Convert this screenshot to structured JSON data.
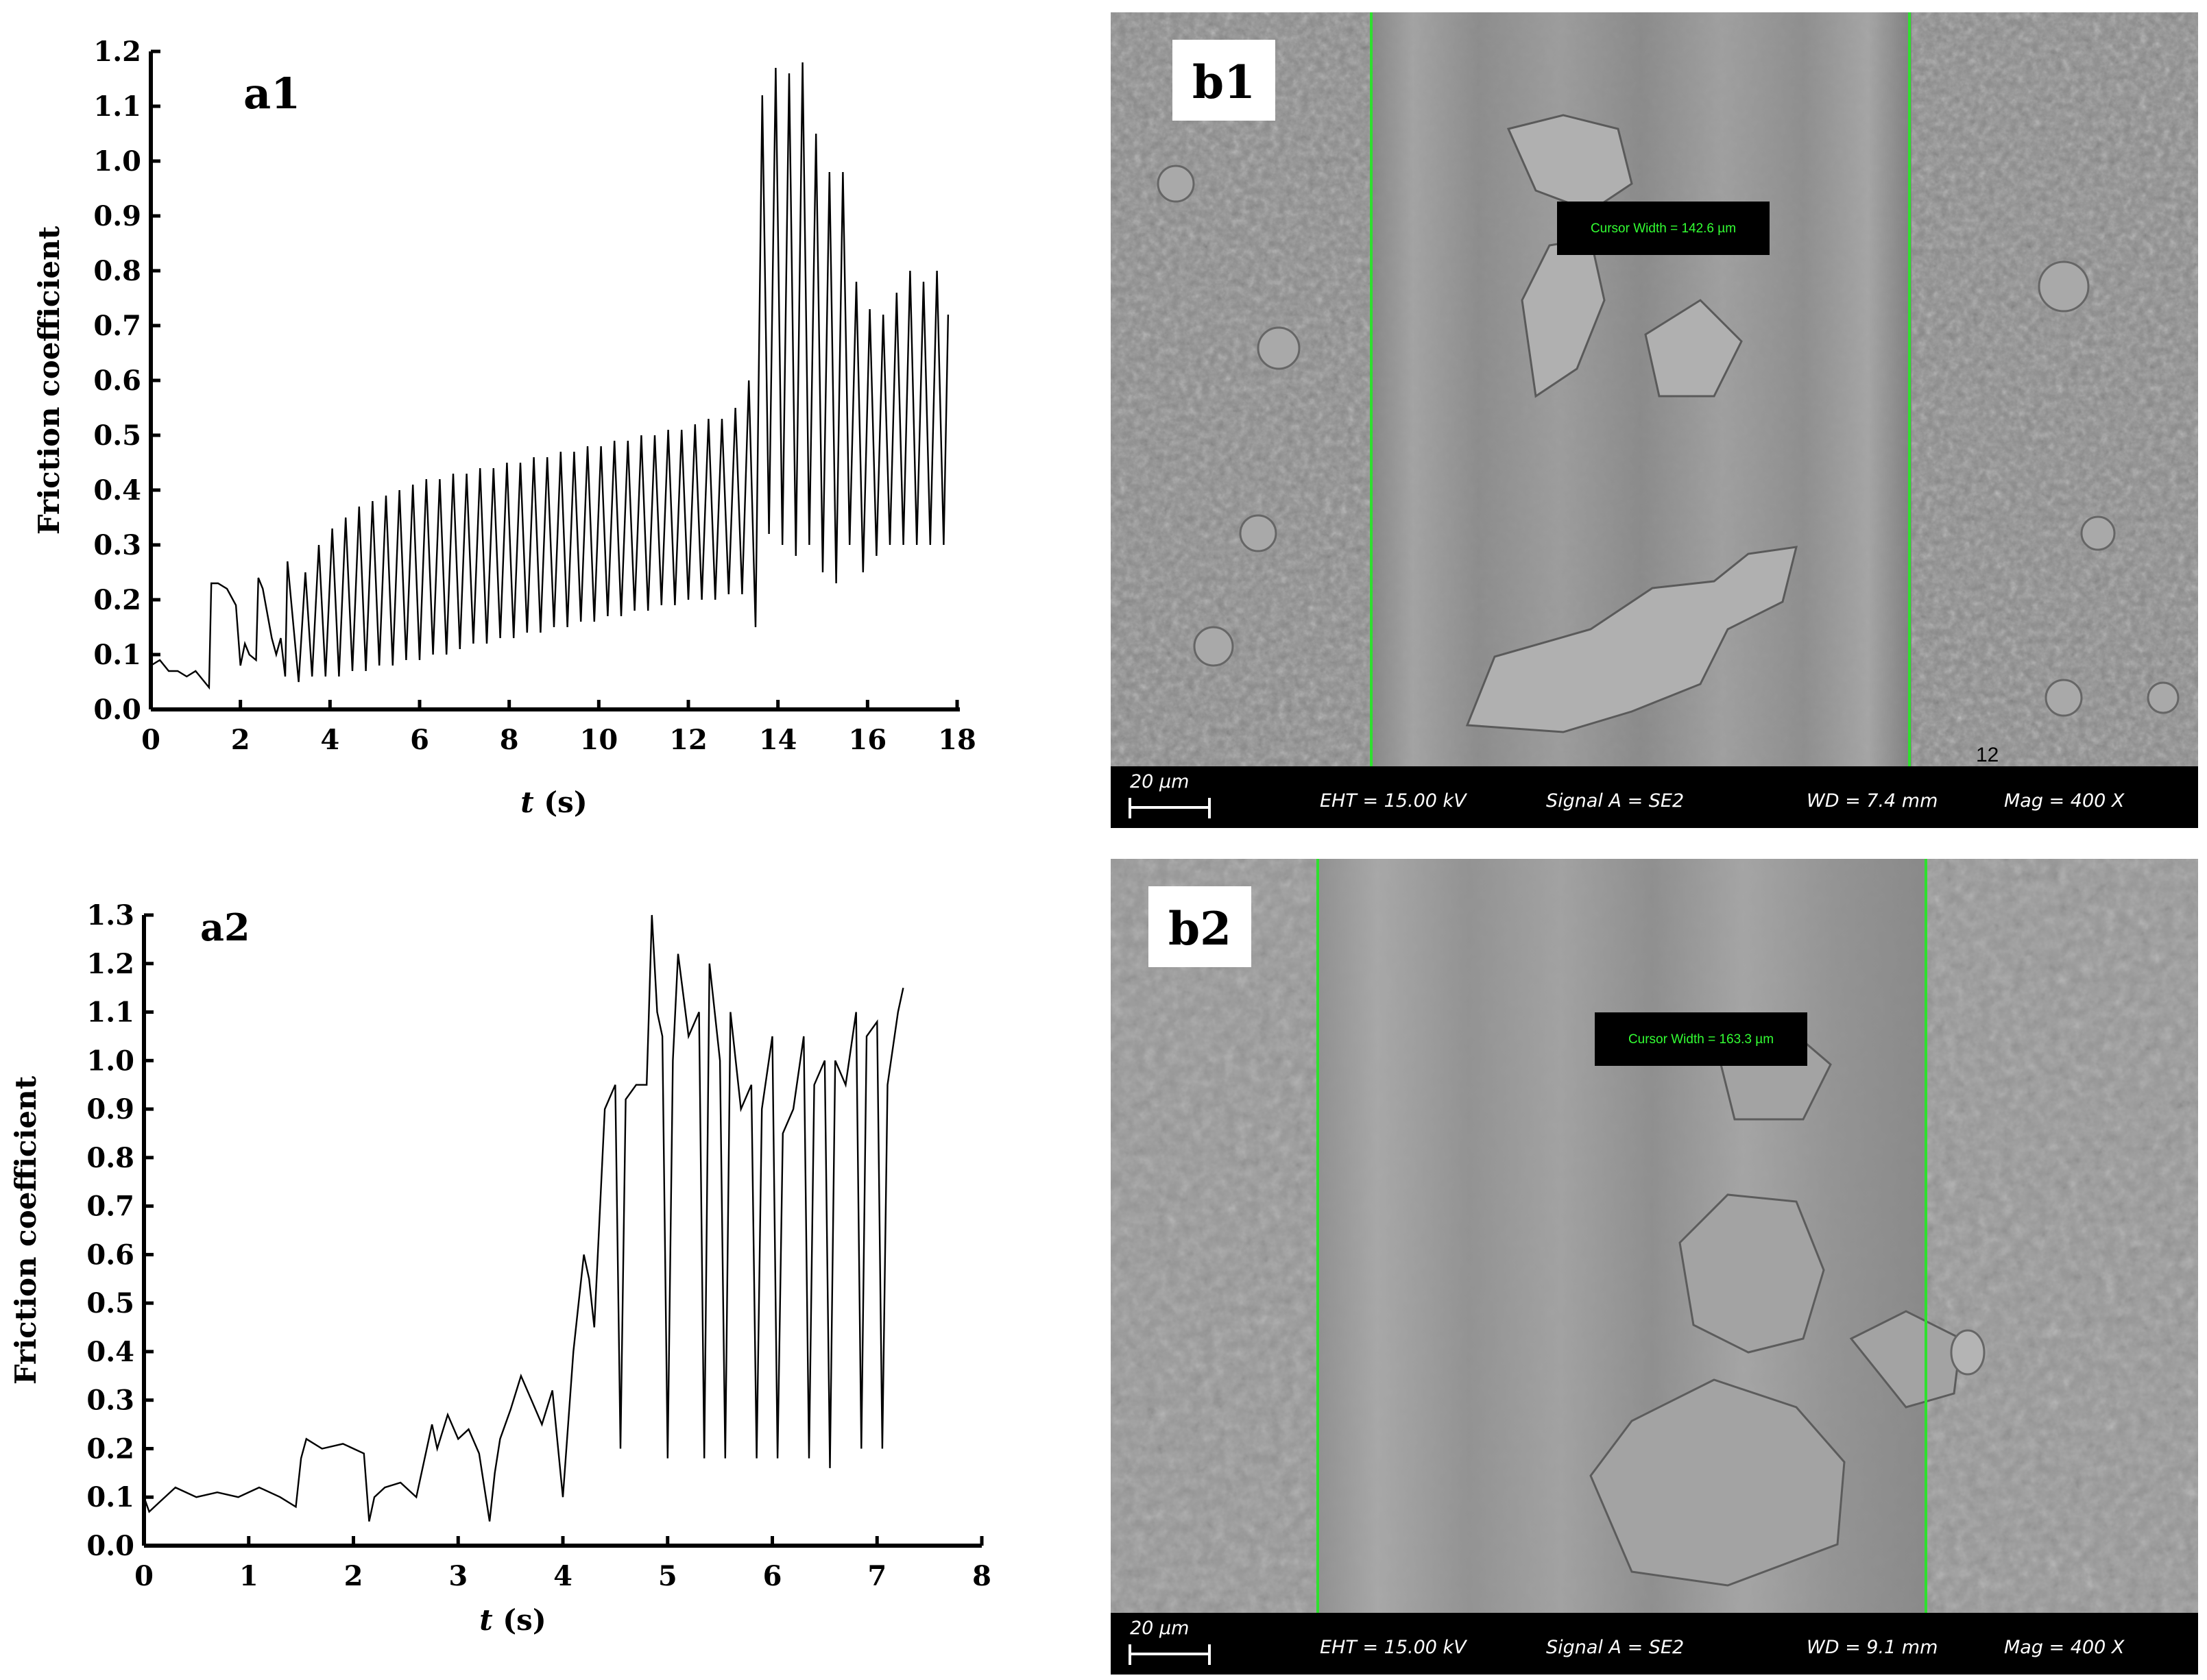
{
  "chart_data": [
    {
      "type": "line",
      "panel": "a1",
      "xlabel_italic": "t",
      "xlabel_unit": " (s)",
      "ylabel": "Friction coefficient",
      "xlim": [
        0,
        18
      ],
      "ylim": [
        0,
        1.2
      ],
      "xticks": [
        "0",
        "2",
        "4",
        "6",
        "8",
        "10",
        "12",
        "14",
        "16",
        "18"
      ],
      "yticks": [
        "0.0",
        "0.1",
        "0.2",
        "0.3",
        "0.4",
        "0.5",
        "0.6",
        "0.7",
        "0.8",
        "0.9",
        "1.0",
        "1.1",
        "1.2"
      ],
      "series": [
        {
          "color": "#000000",
          "x": [
            0.0,
            0.2,
            0.4,
            0.6,
            0.8,
            1.0,
            1.2,
            1.3,
            1.35,
            1.5,
            1.7,
            1.9,
            2.0,
            2.1,
            2.2,
            2.35,
            2.4,
            2.5,
            2.7,
            2.8,
            2.9,
            3.0,
            3.05,
            3.3,
            3.45,
            3.6,
            3.75,
            3.9,
            4.05,
            4.2,
            4.35,
            4.5,
            4.65,
            4.8,
            4.95,
            5.1,
            5.25,
            5.4,
            5.55,
            5.7,
            5.85,
            6.0,
            6.15,
            6.3,
            6.45,
            6.6,
            6.75,
            6.9,
            7.05,
            7.2,
            7.35,
            7.5,
            7.65,
            7.8,
            7.95,
            8.1,
            8.25,
            8.4,
            8.55,
            8.7,
            8.85,
            9.0,
            9.15,
            9.3,
            9.45,
            9.6,
            9.75,
            9.9,
            10.05,
            10.2,
            10.35,
            10.5,
            10.65,
            10.8,
            10.95,
            11.1,
            11.25,
            11.4,
            11.55,
            11.7,
            11.85,
            12.0,
            12.15,
            12.3,
            12.45,
            12.6,
            12.75,
            12.9,
            13.05,
            13.2,
            13.35,
            13.5,
            13.65,
            13.8,
            13.95,
            14.1,
            14.25,
            14.4,
            14.55,
            14.7,
            14.85,
            15.0,
            15.15,
            15.3,
            15.45,
            15.6,
            15.75,
            15.9,
            16.05,
            16.2,
            16.35,
            16.5,
            16.65,
            16.8,
            16.95,
            17.1,
            17.25,
            17.4,
            17.55,
            17.7,
            17.8
          ],
          "y": [
            0.08,
            0.09,
            0.07,
            0.07,
            0.06,
            0.07,
            0.05,
            0.04,
            0.23,
            0.23,
            0.22,
            0.19,
            0.08,
            0.12,
            0.1,
            0.09,
            0.24,
            0.22,
            0.13,
            0.1,
            0.13,
            0.06,
            0.27,
            0.05,
            0.25,
            0.06,
            0.3,
            0.06,
            0.33,
            0.06,
            0.35,
            0.07,
            0.37,
            0.07,
            0.38,
            0.08,
            0.39,
            0.08,
            0.4,
            0.09,
            0.41,
            0.09,
            0.42,
            0.1,
            0.42,
            0.1,
            0.43,
            0.11,
            0.43,
            0.12,
            0.44,
            0.12,
            0.44,
            0.13,
            0.45,
            0.13,
            0.45,
            0.14,
            0.46,
            0.14,
            0.46,
            0.15,
            0.47,
            0.15,
            0.47,
            0.16,
            0.48,
            0.16,
            0.48,
            0.17,
            0.49,
            0.17,
            0.49,
            0.18,
            0.5,
            0.18,
            0.5,
            0.19,
            0.51,
            0.19,
            0.51,
            0.2,
            0.52,
            0.2,
            0.53,
            0.2,
            0.53,
            0.21,
            0.55,
            0.21,
            0.6,
            0.15,
            1.12,
            0.32,
            1.17,
            0.3,
            1.16,
            0.28,
            1.18,
            0.3,
            1.05,
            0.25,
            0.98,
            0.23,
            0.98,
            0.3,
            0.78,
            0.25,
            0.73,
            0.28,
            0.72,
            0.3,
            0.76,
            0.3,
            0.8,
            0.3,
            0.78,
            0.3,
            0.8,
            0.3,
            0.72
          ]
        }
      ]
    },
    {
      "type": "line",
      "panel": "a2",
      "xlabel_italic": "t",
      "xlabel_unit": " (s)",
      "ylabel": "Friction coefficient",
      "xlim": [
        0,
        8
      ],
      "ylim": [
        0,
        1.3
      ],
      "xticks": [
        "0",
        "1",
        "2",
        "3",
        "4",
        "5",
        "6",
        "7",
        "8"
      ],
      "yticks": [
        "0.0",
        "0.1",
        "0.2",
        "0.3",
        "0.4",
        "0.5",
        "0.6",
        "0.7",
        "0.8",
        "0.9",
        "1.0",
        "1.1",
        "1.2",
        "1.3"
      ],
      "series": [
        {
          "color": "#000000",
          "x": [
            0.0,
            0.05,
            0.15,
            0.3,
            0.5,
            0.7,
            0.9,
            1.1,
            1.3,
            1.45,
            1.5,
            1.55,
            1.7,
            1.9,
            2.1,
            2.15,
            2.2,
            2.3,
            2.45,
            2.6,
            2.75,
            2.8,
            2.9,
            3.0,
            3.1,
            3.2,
            3.3,
            3.35,
            3.4,
            3.5,
            3.6,
            3.7,
            3.8,
            3.9,
            4.0,
            4.1,
            4.15,
            4.2,
            4.25,
            4.3,
            4.4,
            4.5,
            4.55,
            4.6,
            4.7,
            4.8,
            4.85,
            4.9,
            4.95,
            5.0,
            5.05,
            5.1,
            5.2,
            5.3,
            5.35,
            5.4,
            5.5,
            5.55,
            5.6,
            5.7,
            5.8,
            5.85,
            5.9,
            6.0,
            6.05,
            6.1,
            6.2,
            6.3,
            6.35,
            6.4,
            6.5,
            6.55,
            6.6,
            6.7,
            6.8,
            6.85,
            6.9,
            7.0,
            7.05,
            7.1,
            7.2,
            7.25
          ],
          "y": [
            0.1,
            0.07,
            0.09,
            0.12,
            0.1,
            0.11,
            0.1,
            0.12,
            0.1,
            0.08,
            0.18,
            0.22,
            0.2,
            0.21,
            0.19,
            0.05,
            0.1,
            0.12,
            0.13,
            0.1,
            0.25,
            0.2,
            0.27,
            0.22,
            0.24,
            0.19,
            0.05,
            0.15,
            0.22,
            0.28,
            0.35,
            0.3,
            0.25,
            0.32,
            0.1,
            0.4,
            0.5,
            0.6,
            0.55,
            0.45,
            0.9,
            0.95,
            0.2,
            0.92,
            0.95,
            0.95,
            1.3,
            1.1,
            1.05,
            0.18,
            1.0,
            1.22,
            1.05,
            1.1,
            0.18,
            1.2,
            1.0,
            0.18,
            1.1,
            0.9,
            0.95,
            0.18,
            0.9,
            1.05,
            0.18,
            0.85,
            0.9,
            1.05,
            0.18,
            0.95,
            1.0,
            0.16,
            1.0,
            0.95,
            1.1,
            0.2,
            1.05,
            1.08,
            0.2,
            0.95,
            1.1,
            1.15
          ]
        }
      ]
    }
  ],
  "panels": {
    "a1": "a1",
    "a2": "a2",
    "b1": "b1",
    "b2": "b2"
  },
  "sem": [
    {
      "id": "b1",
      "cursor_text": "Cursor Width = 142.6 µm",
      "scale_bar": "20 µm",
      "eht": "EHT = 15.00 kV",
      "signal": "Signal A = SE2",
      "wd": "WD =  7.4 mm",
      "mag": "Mag =   400 X",
      "marker": "12"
    },
    {
      "id": "b2",
      "cursor_text": "Cursor Width = 163.3 µm",
      "scale_bar": "20 µm",
      "eht": "EHT = 15.00 kV",
      "signal": "Signal A = SE2",
      "wd": "WD =  9.1 mm",
      "mag": "Mag =   400 X"
    }
  ]
}
